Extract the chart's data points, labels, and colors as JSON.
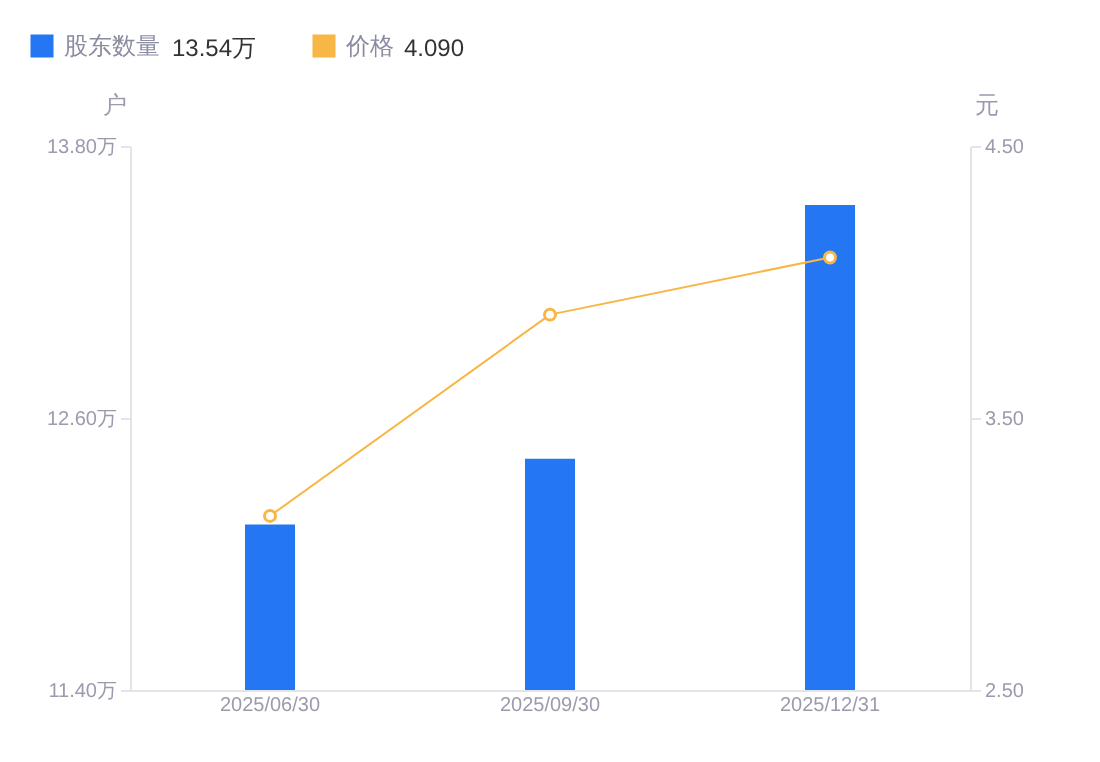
{
  "chart_data": {
    "type": "bar",
    "categories": [
      "2025/06/30",
      "2025/09/30",
      "2025/12/31"
    ],
    "series": [
      {
        "name": "股东数量",
        "color": "#2476f2",
        "values": [
          12.13,
          12.42,
          13.54
        ]
      },
      {
        "name": "价格",
        "type": "line",
        "axis": "y2",
        "color": "#f8b645",
        "values": [
          3.14,
          3.88,
          4.09
        ]
      }
    ],
    "annotations": [
      "13.54万",
      "4.090"
    ],
    "ylabel": "户",
    "y2label": "元",
    "ylim": [
      11.4,
      13.8
    ],
    "yticks": [
      {
        "value": 11.4,
        "label": "11.40万"
      },
      {
        "value": 12.6,
        "label": "12.60万"
      },
      {
        "value": 13.8,
        "label": "13.80万"
      }
    ],
    "y2lim": [
      2.5,
      4.5
    ],
    "y2ticks": [
      {
        "value": 2.5,
        "label": "2.50"
      },
      {
        "value": 3.5,
        "label": "3.50"
      },
      {
        "value": 4.5,
        "label": "4.50"
      }
    ],
    "marker": "circle",
    "legend": "top left",
    "grid": false
  }
}
